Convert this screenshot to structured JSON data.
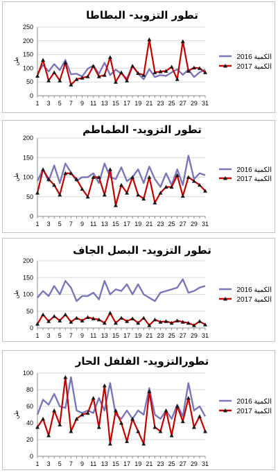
{
  "x_tick_labels": [
    "1",
    "3",
    "5",
    "7",
    "9",
    "11",
    "13",
    "15",
    "17",
    "19",
    "21",
    "23",
    "25",
    "27",
    "29",
    "31"
  ],
  "chart_data": [
    {
      "type": "line",
      "title": "تطور التزويد- البطاطا",
      "ylabel": "طن",
      "ylim": [
        0,
        250
      ],
      "yticks": [
        0,
        50,
        100,
        150,
        200,
        250
      ],
      "x": [
        1,
        2,
        3,
        4,
        5,
        6,
        7,
        8,
        9,
        10,
        11,
        12,
        13,
        14,
        15,
        16,
        17,
        18,
        19,
        20,
        21,
        22,
        23,
        24,
        25,
        26,
        27,
        28,
        29,
        30,
        31
      ],
      "grid": true,
      "legend_position": "right",
      "series": [
        {
          "name": "2016",
          "legend_label": "الكمية 2016",
          "color": "#7a77b9",
          "marker": "none",
          "values": [
            80,
            112,
            88,
            115,
            93,
            130,
            78,
            80,
            70,
            98,
            110,
            80,
            120,
            75,
            95,
            80,
            62,
            110,
            80,
            60,
            97,
            68,
            75,
            72,
            85,
            96,
            76,
            95,
            68,
            85,
            95
          ]
        },
        {
          "name": "2017",
          "legend_label": "الكمية 2017",
          "color": "#c00000",
          "marker": "triangle",
          "values": [
            72,
            130,
            55,
            85,
            55,
            120,
            40,
            60,
            65,
            70,
            108,
            70,
            75,
            140,
            50,
            85,
            55,
            108,
            82,
            75,
            205,
            85,
            88,
            90,
            105,
            60,
            198,
            90,
            102,
            100,
            85
          ]
        }
      ]
    },
    {
      "type": "line",
      "title": "تطور التزويد- الطماطم",
      "ylabel": "طن",
      "ylim": [
        0,
        200
      ],
      "yticks": [
        0,
        50,
        100,
        150,
        200
      ],
      "x": [
        1,
        2,
        3,
        4,
        5,
        6,
        7,
        8,
        9,
        10,
        11,
        12,
        13,
        14,
        15,
        16,
        17,
        18,
        19,
        20,
        21,
        22,
        23,
        24,
        25,
        26,
        27,
        28,
        29,
        30,
        31
      ],
      "grid": true,
      "legend_position": "right",
      "series": [
        {
          "name": "2016",
          "legend_label": "الكمية 2016",
          "color": "#7a77b9",
          "marker": "none",
          "values": [
            90,
            120,
            90,
            130,
            85,
            135,
            112,
            90,
            100,
            100,
            110,
            85,
            135,
            100,
            95,
            125,
            90,
            100,
            120,
            85,
            127,
            95,
            75,
            110,
            80,
            120,
            80,
            155,
            95,
            110,
            105
          ]
        },
        {
          "name": "2017",
          "legend_label": "الكمية 2017",
          "color": "#c00000",
          "marker": "triangle",
          "values": [
            60,
            120,
            95,
            80,
            55,
            110,
            110,
            95,
            70,
            50,
            100,
            100,
            55,
            120,
            28,
            80,
            60,
            100,
            55,
            45,
            100,
            35,
            60,
            75,
            75,
            105,
            52,
            100,
            90,
            80,
            65
          ]
        }
      ]
    },
    {
      "type": "line",
      "title": "تطور التزويد- البصل الجاف",
      "ylabel": "طن",
      "ylim": [
        0,
        200
      ],
      "yticks": [
        0,
        50,
        100,
        150,
        200
      ],
      "x": [
        1,
        2,
        3,
        4,
        5,
        6,
        7,
        8,
        9,
        10,
        11,
        12,
        13,
        14,
        15,
        16,
        17,
        18,
        19,
        20,
        21,
        22,
        23,
        24,
        25,
        26,
        27,
        28,
        29,
        30,
        31
      ],
      "grid": true,
      "legend_position": "right",
      "series": [
        {
          "name": "2016",
          "legend_label": "الكمية 2016",
          "color": "#7a77b9",
          "marker": "none",
          "values": [
            90,
            110,
            95,
            125,
            100,
            140,
            120,
            80,
            95,
            95,
            105,
            85,
            140,
            100,
            115,
            110,
            130,
            100,
            130,
            100,
            90,
            80,
            105,
            110,
            115,
            120,
            145,
            105,
            110,
            120,
            125
          ]
        },
        {
          "name": "2017",
          "legend_label": "الكمية 2017",
          "color": "#c00000",
          "marker": "triangle",
          "values": [
            12,
            40,
            20,
            35,
            22,
            40,
            18,
            30,
            22,
            32,
            28,
            25,
            15,
            45,
            15,
            30,
            20,
            28,
            15,
            30,
            8,
            25,
            18,
            20,
            15,
            22,
            18,
            15,
            8,
            20,
            10
          ]
        }
      ]
    },
    {
      "type": "line",
      "title": "تطورالتزويد- الفلفل الحار",
      "ylabel": "طن",
      "ylim": [
        0,
        100
      ],
      "yticks": [
        0,
        20,
        40,
        60,
        80,
        100
      ],
      "x": [
        1,
        2,
        3,
        4,
        5,
        6,
        7,
        8,
        9,
        10,
        11,
        12,
        13,
        14,
        15,
        16,
        17,
        18,
        19,
        20,
        21,
        22,
        23,
        24,
        25,
        26,
        27,
        28,
        29,
        30,
        31
      ],
      "grid": true,
      "legend_position": "right",
      "series": [
        {
          "name": "2016",
          "legend_label": "الكمية 2016",
          "color": "#7a77b9",
          "marker": "none",
          "values": [
            50,
            68,
            62,
            75,
            60,
            58,
            95,
            55,
            52,
            55,
            52,
            70,
            55,
            88,
            50,
            45,
            55,
            45,
            55,
            50,
            82,
            50,
            45,
            55,
            45,
            62,
            48,
            88,
            55,
            60,
            48
          ]
        },
        {
          "name": "2017",
          "legend_label": "الكمية 2017",
          "color": "#c00000",
          "marker": "triangle",
          "values": [
            35,
            45,
            25,
            55,
            38,
            95,
            30,
            45,
            50,
            52,
            70,
            35,
            85,
            15,
            55,
            40,
            18,
            45,
            30,
            15,
            78,
            35,
            30,
            55,
            25,
            60,
            42,
            70,
            35,
            48,
            30
          ]
        }
      ]
    }
  ]
}
